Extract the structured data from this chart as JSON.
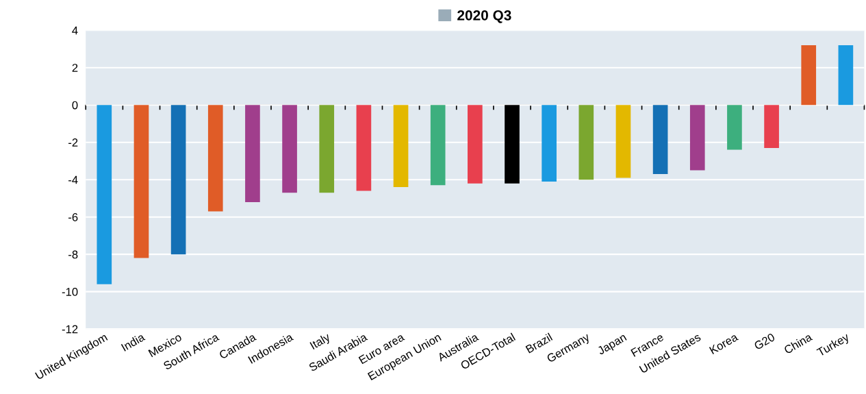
{
  "chart_data": {
    "type": "bar",
    "categories": [
      "United Kingdom",
      "India",
      "Mexico",
      "South Africa",
      "Canada",
      "Indonesia",
      "Italy",
      "Saudi Arabia",
      "Euro area",
      "European Union",
      "Australia",
      "OECD-Total",
      "Brazil",
      "Germany",
      "Japan",
      "France",
      "United States",
      "Korea",
      "G20",
      "China",
      "Turkey"
    ],
    "series": [
      {
        "name": "2020 Q3",
        "color": "#9aacb8",
        "values": [
          -9.6,
          -8.2,
          -8.0,
          -5.7,
          -5.2,
          -4.7,
          -4.7,
          -4.6,
          -4.4,
          -4.3,
          -4.2,
          -4.2,
          -4.1,
          -4.0,
          -3.9,
          -3.7,
          -3.5,
          -2.4,
          -2.3,
          3.2,
          3.2
        ],
        "colors": [
          "#1a9ae0",
          "#e05c27",
          "#1470b5",
          "#e05c27",
          "#a03e8c",
          "#a03e8c",
          "#7ba72f",
          "#e8404e",
          "#e3b800",
          "#3daf7e",
          "#e8404e",
          "#000000",
          "#1a9ae0",
          "#7ba72f",
          "#e3b800",
          "#1470b5",
          "#a03e8c",
          "#3daf7e",
          "#e8404e",
          "#e05c27",
          "#1a9ae0"
        ]
      }
    ],
    "ylim": [
      -12,
      4
    ],
    "yticks": [
      -12,
      -10,
      -8,
      -6,
      -4,
      -2,
      0,
      2,
      4
    ],
    "grid": "y",
    "legend": "top"
  }
}
